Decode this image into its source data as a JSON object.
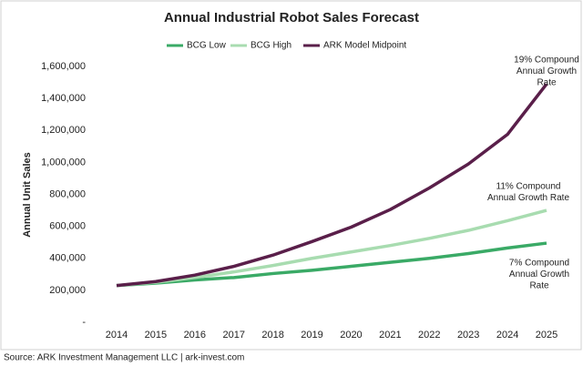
{
  "chart_data": {
    "type": "line",
    "title": "Annual Industrial Robot Sales Forecast",
    "y_label": "Annual Unit Sales",
    "categories": [
      "2014",
      "2015",
      "2016",
      "2017",
      "2018",
      "2019",
      "2020",
      "2021",
      "2022",
      "2023",
      "2024",
      "2025"
    ],
    "series": [
      {
        "name": "BCG Low",
        "color": "#3aaa66",
        "values": [
          230000,
          245000,
          265000,
          280000,
          305000,
          325000,
          350000,
          375000,
          400000,
          430000,
          465000,
          495000
        ]
      },
      {
        "name": "BCG High",
        "color": "#a8dcb0",
        "values": [
          230000,
          250000,
          280000,
          315000,
          355000,
          400000,
          440000,
          480000,
          525000,
          575000,
          635000,
          700000
        ]
      },
      {
        "name": "ARK Model Midpoint",
        "color": "#5a1f4a",
        "values": [
          230000,
          255000,
          295000,
          350000,
          420000,
          505000,
          595000,
          705000,
          840000,
          990000,
          1175000,
          1490000
        ]
      }
    ],
    "ylim": [
      0,
      1600000
    ],
    "yticks": [
      {
        "value": 0,
        "label": "-"
      },
      {
        "value": 200000,
        "label": "200,000"
      },
      {
        "value": 400000,
        "label": "400,000"
      },
      {
        "value": 600000,
        "label": "600,000"
      },
      {
        "value": 800000,
        "label": "800,000"
      },
      {
        "value": 1000000,
        "label": "1,000,000"
      },
      {
        "value": 1200000,
        "label": "1,200,000"
      },
      {
        "value": 1400000,
        "label": "1,400,000"
      },
      {
        "value": 1600000,
        "label": "1,600,000"
      }
    ],
    "legend_position": "top",
    "annotations": [
      [
        "19% Compound",
        "Annual Growth",
        "Rate"
      ],
      [
        "11% Compound",
        "Annual Growth Rate"
      ],
      [
        "7% Compound",
        "Annual Growth",
        "Rate"
      ]
    ],
    "source": "Source: ARK Investment Management LLC | ark-invest.com"
  }
}
